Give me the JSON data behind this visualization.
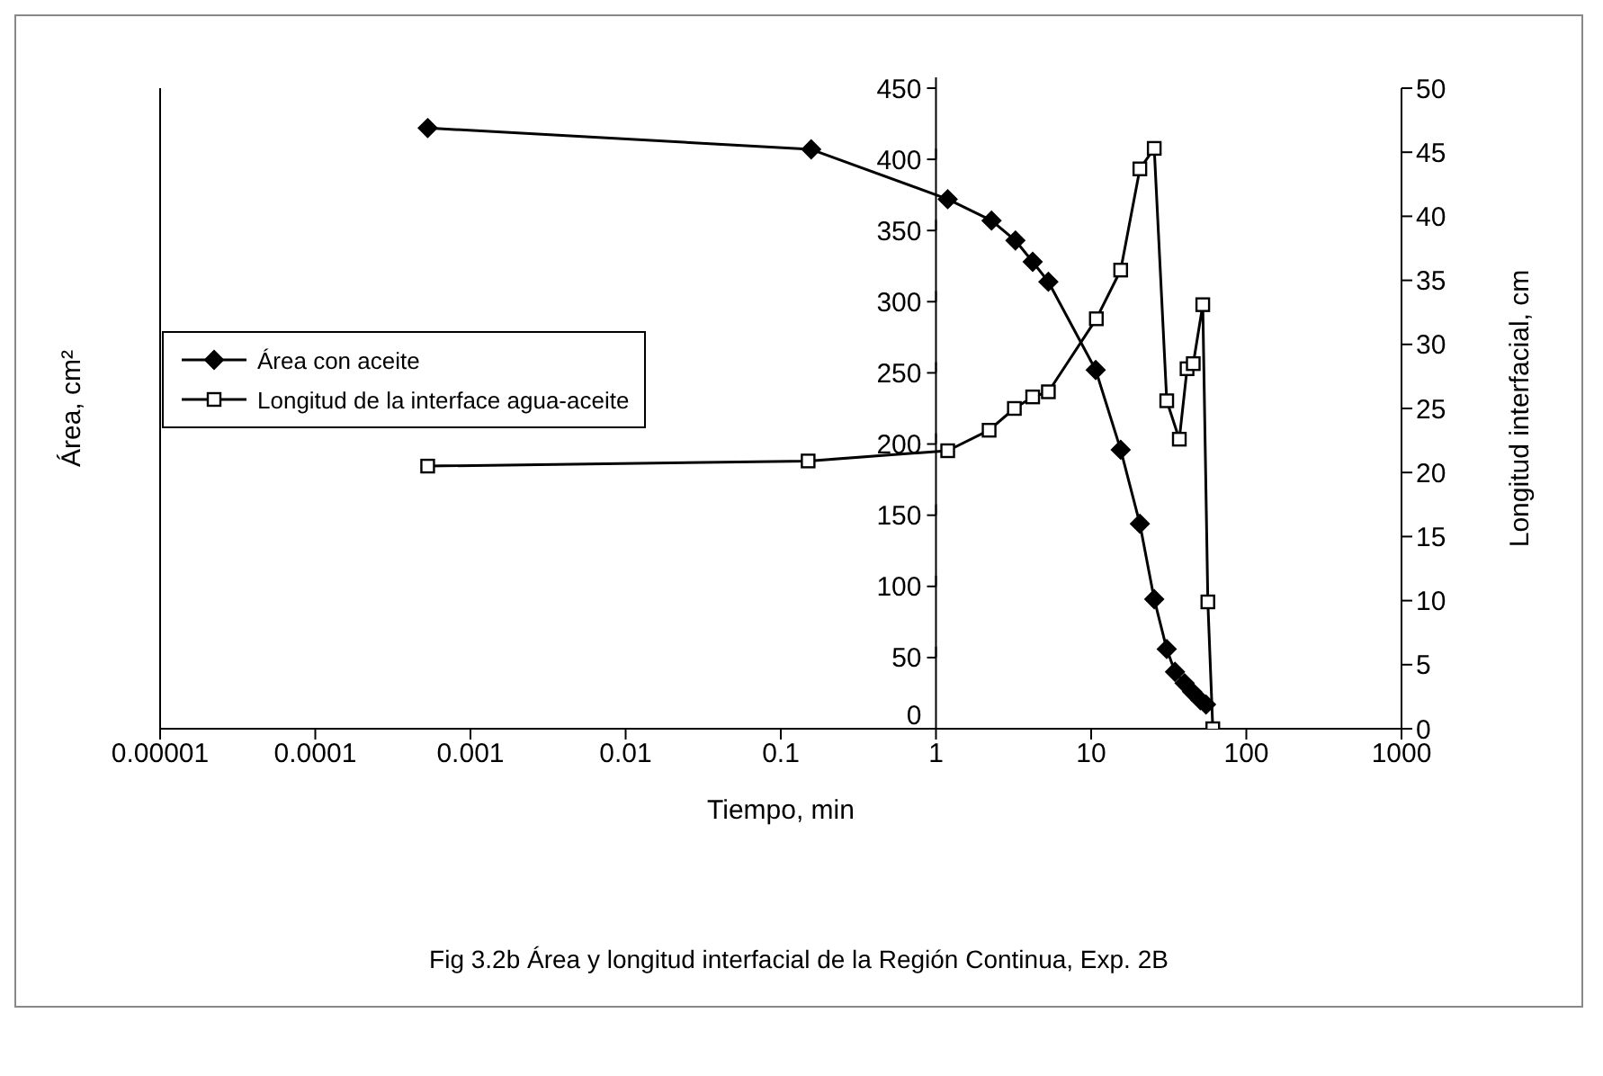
{
  "chart_data": {
    "type": "line",
    "xlabel": "Tiempo, min",
    "ylabel": "Área, cm²",
    "y2label": "Longitud interfacial, cm",
    "log": "x",
    "xlim": [
      1e-05,
      1000
    ],
    "xticks": [
      {
        "value": 1e-05,
        "label": "0.00001"
      },
      0.0001,
      0.001,
      0.01,
      0.1,
      1,
      10,
      100,
      1000
    ],
    "ylim": [
      0,
      450
    ],
    "yticks": [
      0,
      50,
      100,
      150,
      200,
      250,
      300,
      350,
      400,
      450
    ],
    "y2lim": [
      0,
      50
    ],
    "y2ticks": [
      0,
      5,
      10,
      15,
      20,
      25,
      30,
      35,
      40,
      45,
      50
    ],
    "legend": "left",
    "line_style": "solid",
    "annotations": [
      "Fig 3.2b Área y longitud interfacial de la Región Continua, Exp. 2B"
    ],
    "series": [
      {
        "name": "Área con aceite",
        "color": "#000000",
        "marker": "diamond",
        "x": [
          0.00053,
          0.157,
          1.19,
          2.28,
          3.25,
          4.2,
          5.3,
          10.7,
          15.5,
          20.6,
          25.5,
          30.7,
          34.7,
          40,
          44.7,
          50.6,
          55
        ],
        "values": [
          422,
          407,
          372,
          357,
          343,
          328,
          314,
          252,
          196,
          144,
          91,
          56,
          40,
          32,
          26,
          20,
          17
        ]
      },
      {
        "name": "Longitud de la interface agua-aceite",
        "color": "#000000",
        "marker": "square",
        "axis": "y2",
        "x": [
          0.00053,
          0.15,
          1.19,
          2.2,
          3.2,
          4.2,
          5.3,
          10.8,
          15.5,
          20.6,
          25.5,
          30.7,
          37,
          41.5,
          45.5,
          52.4,
          56.5,
          60.8
        ],
        "values": [
          20.5,
          20.9,
          21.7,
          23.3,
          25.0,
          25.9,
          26.3,
          32.0,
          35.8,
          43.7,
          45.3,
          25.6,
          22.6,
          28.1,
          28.5,
          33.1,
          9.9,
          0
        ]
      }
    ]
  }
}
